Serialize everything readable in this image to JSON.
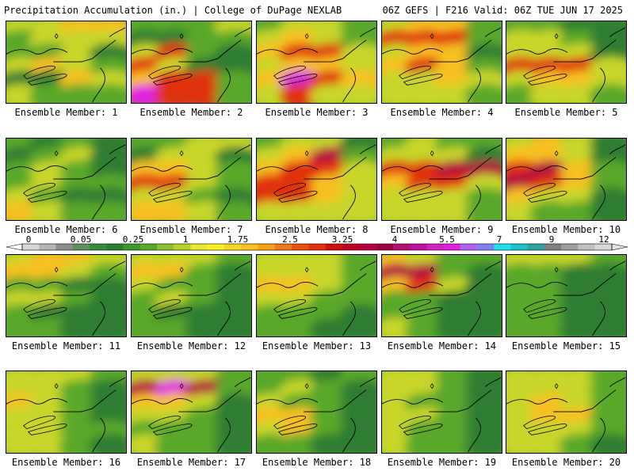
{
  "header": {
    "title": "Precipitation Accumulation (in.) | College of DuPage NEXLAB",
    "run_info": "06Z GEFS | F216 Valid: 06Z TUE JUN 17 2025"
  },
  "members": [
    {
      "label": "Ensemble Member: 1",
      "pattern": [
        2,
        2,
        3,
        3,
        1,
        2,
        2,
        2,
        1,
        1,
        2,
        0,
        2,
        3,
        2,
        1,
        0,
        0,
        3,
        2,
        2,
        1,
        1,
        1
      ]
    },
    {
      "label": "Ensemble Member: 2",
      "pattern": [
        1,
        1,
        1,
        2,
        0,
        0,
        1,
        1,
        2,
        4,
        1,
        0,
        4,
        2,
        0,
        0,
        3,
        4,
        4,
        1,
        6,
        4,
        4,
        1
      ]
    },
    {
      "label": "Ensemble Member: 3",
      "pattern": [
        1,
        2,
        2,
        1,
        2,
        3,
        2,
        1,
        3,
        4,
        4,
        2,
        2,
        3,
        3,
        2,
        3,
        6,
        4,
        3,
        2,
        4,
        2,
        2
      ]
    },
    {
      "label": "Ensemble Member: 4",
      "pattern": [
        2,
        3,
        3,
        1,
        4,
        4,
        4,
        1,
        2,
        3,
        3,
        0,
        3,
        4,
        3,
        1,
        2,
        2,
        3,
        2,
        2,
        2,
        2,
        1
      ]
    },
    {
      "label": "Ensemble Member: 5",
      "pattern": [
        1,
        1,
        0,
        0,
        2,
        2,
        1,
        0,
        2,
        2,
        2,
        0,
        4,
        4,
        4,
        2,
        2,
        3,
        3,
        2,
        1,
        2,
        2,
        1
      ]
    },
    {
      "label": "Ensemble Member: 6",
      "pattern": [
        1,
        0,
        1,
        0,
        0,
        1,
        2,
        0,
        1,
        2,
        1,
        0,
        1,
        2,
        1,
        1,
        2,
        1,
        0,
        0,
        3,
        2,
        1,
        1
      ]
    },
    {
      "label": "Ensemble Member: 7",
      "pattern": [
        1,
        1,
        2,
        2,
        0,
        2,
        2,
        0,
        3,
        3,
        2,
        1,
        4,
        4,
        2,
        1,
        2,
        2,
        1,
        0,
        3,
        3,
        2,
        1
      ]
    },
    {
      "label": "Ensemble Member: 8",
      "pattern": [
        1,
        2,
        2,
        0,
        2,
        3,
        5,
        1,
        3,
        4,
        4,
        2,
        4,
        4,
        3,
        2,
        4,
        4,
        3,
        2,
        2,
        2,
        2,
        2
      ]
    },
    {
      "label": "Ensemble Member: 9",
      "pattern": [
        1,
        2,
        1,
        1,
        2,
        2,
        2,
        0,
        4,
        4,
        5,
        5,
        3,
        4,
        4,
        2,
        2,
        2,
        2,
        1,
        2,
        2,
        2,
        1
      ]
    },
    {
      "label": "Ensemble Member: 10",
      "pattern": [
        2,
        3,
        2,
        0,
        3,
        3,
        2,
        0,
        4,
        5,
        3,
        1,
        5,
        4,
        3,
        1,
        3,
        2,
        2,
        0,
        2,
        1,
        1,
        0
      ]
    },
    {
      "label": "Ensemble Member: 11",
      "pattern": [
        2,
        3,
        3,
        2,
        3,
        3,
        2,
        1,
        1,
        1,
        0,
        0,
        2,
        2,
        1,
        0,
        1,
        0,
        0,
        0,
        1,
        1,
        0,
        0
      ]
    },
    {
      "label": "Ensemble Member: 12",
      "pattern": [
        2,
        2,
        2,
        1,
        3,
        3,
        1,
        0,
        2,
        1,
        1,
        0,
        1,
        2,
        1,
        0,
        1,
        0,
        0,
        0,
        1,
        1,
        0,
        0
      ]
    },
    {
      "label": "Ensemble Member: 13",
      "pattern": [
        2,
        2,
        2,
        1,
        2,
        2,
        2,
        1,
        3,
        3,
        2,
        1,
        2,
        2,
        1,
        1,
        1,
        1,
        1,
        0,
        1,
        1,
        0,
        0
      ]
    },
    {
      "label": "Ensemble Member: 14",
      "pattern": [
        3,
        2,
        1,
        1,
        5,
        5,
        1,
        0,
        3,
        4,
        2,
        0,
        1,
        1,
        0,
        0,
        1,
        1,
        0,
        0,
        2,
        1,
        0,
        0
      ]
    },
    {
      "label": "Ensemble Member: 15",
      "pattern": [
        2,
        2,
        2,
        1,
        1,
        1,
        0,
        0,
        1,
        1,
        0,
        0,
        1,
        1,
        0,
        0,
        1,
        1,
        0,
        0,
        1,
        1,
        0,
        0
      ]
    },
    {
      "label": "Ensemble Member: 16",
      "pattern": [
        2,
        2,
        2,
        1,
        2,
        2,
        1,
        0,
        3,
        2,
        1,
        0,
        2,
        2,
        1,
        0,
        2,
        2,
        1,
        1,
        2,
        2,
        1,
        0
      ]
    },
    {
      "label": "Ensemble Member: 17",
      "pattern": [
        2,
        2,
        2,
        1,
        5,
        6,
        5,
        1,
        3,
        3,
        2,
        0,
        2,
        2,
        1,
        0,
        1,
        1,
        1,
        0,
        2,
        1,
        1,
        0
      ]
    },
    {
      "label": "Ensemble Member: 18",
      "pattern": [
        1,
        1,
        0,
        1,
        1,
        2,
        1,
        0,
        2,
        1,
        1,
        0,
        3,
        3,
        1,
        0,
        2,
        3,
        1,
        0,
        1,
        1,
        0,
        0
      ]
    },
    {
      "label": "Ensemble Member: 19",
      "pattern": [
        2,
        2,
        1,
        0,
        2,
        2,
        1,
        0,
        2,
        1,
        1,
        0,
        2,
        2,
        1,
        0,
        2,
        1,
        1,
        0,
        2,
        1,
        1,
        0
      ]
    },
    {
      "label": "Ensemble Member: 20",
      "pattern": [
        2,
        2,
        2,
        1,
        2,
        2,
        2,
        1,
        2,
        3,
        2,
        1,
        2,
        3,
        3,
        1,
        2,
        2,
        2,
        1,
        2,
        2,
        1,
        0
      ]
    }
  ],
  "palette": [
    "#2e7d32",
    "#5aa82c",
    "#c8d62a",
    "#f8c020",
    "#e03010",
    "#b40040",
    "#e020e0"
  ],
  "colorbar": {
    "labels": [
      "0",
      "0.05",
      "0.25",
      "1",
      "1.75",
      "2.5",
      "3.25",
      "4",
      "5.5",
      "7",
      "9",
      "12"
    ],
    "colors": [
      "#d8d8d8",
      "#b4b4b4",
      "#8c8c8c",
      "#5e8e5e",
      "#3a8c3a",
      "#2e7d32",
      "#3c9a2c",
      "#5aa82c",
      "#8cc02c",
      "#b4d42a",
      "#e8e830",
      "#f8f020",
      "#f8d820",
      "#f8c020",
      "#f8a018",
      "#f07818",
      "#e85010",
      "#e03010",
      "#d01010",
      "#c00020",
      "#b40040",
      "#a00040",
      "#b01070",
      "#c010a0",
      "#d020c0",
      "#e020e0",
      "#b060f0",
      "#8080f0",
      "#20e0f0",
      "#20c0c8",
      "#30a0a0",
      "#808080",
      "#a0a0a0",
      "#c0c0c0",
      "#d8d8d8"
    ]
  }
}
